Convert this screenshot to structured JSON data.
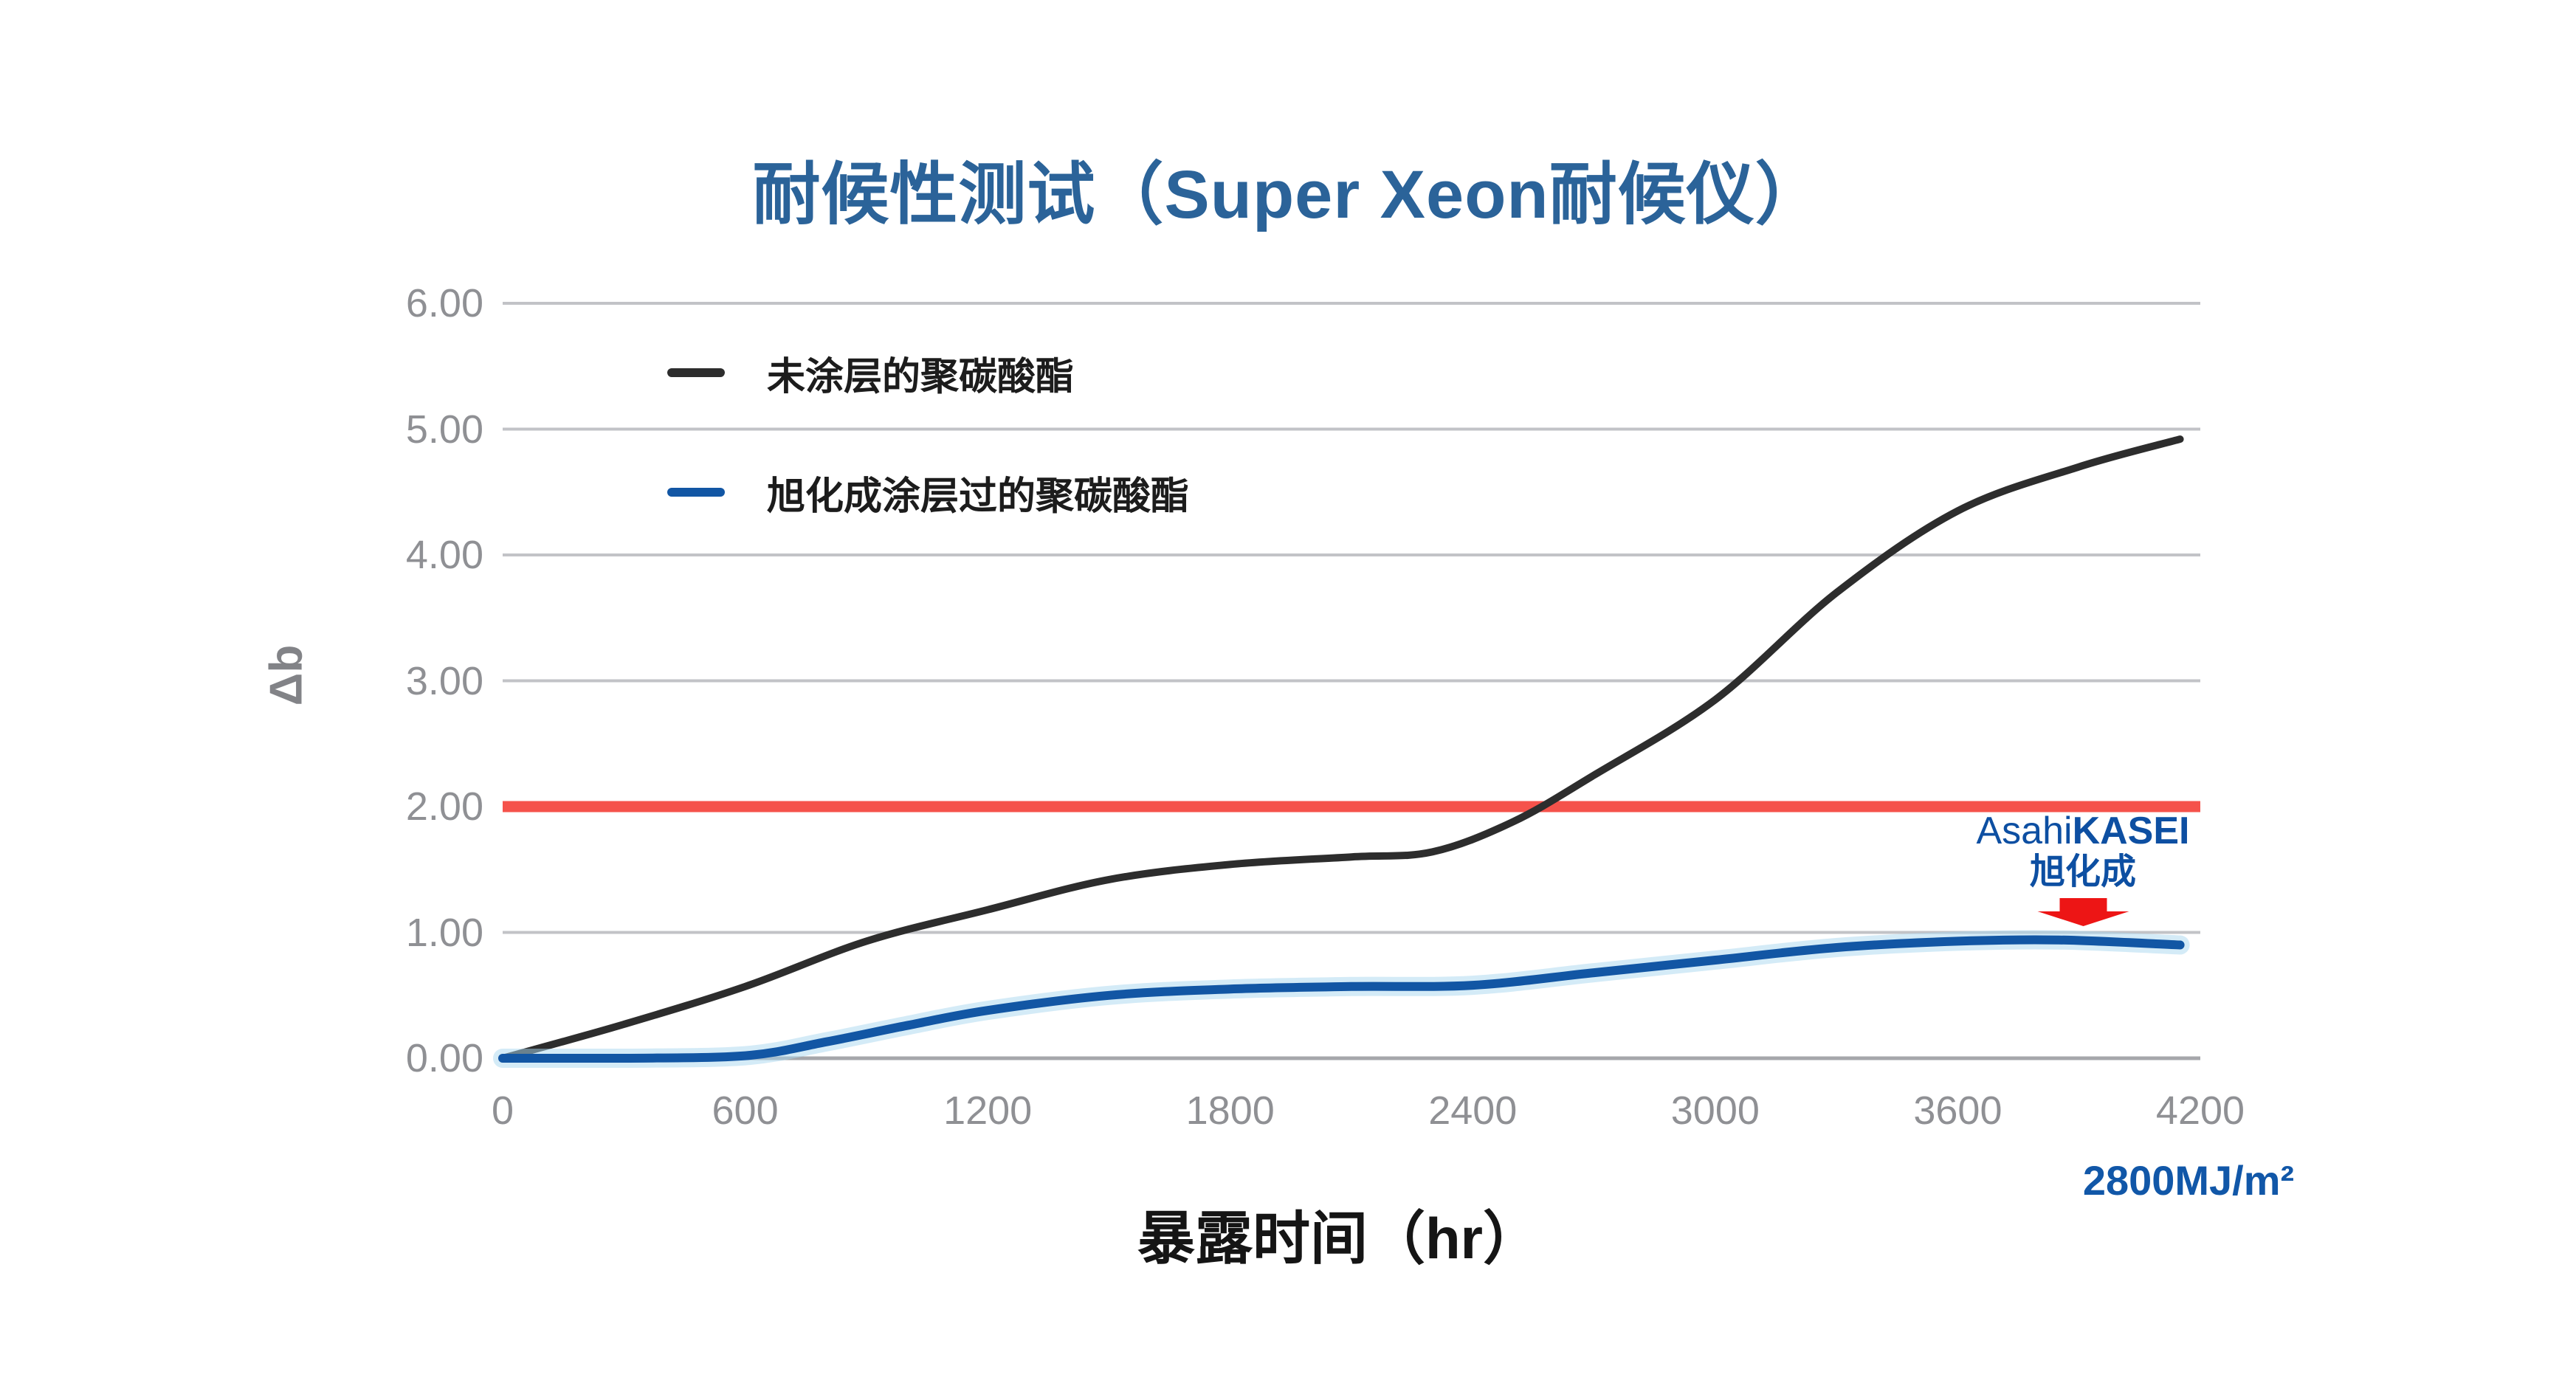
{
  "title": {
    "text": "耐候性测试（Super Xeon耐候仪）"
  },
  "colors": {
    "title_blue": "#2b6399",
    "grid": "#c2c3c7",
    "axis": "#a6a7ab",
    "tick_text": "#8f9094",
    "legend_text": "#1c1c1c",
    "threshold": "#f5524b",
    "series_black": "#2d2d2d",
    "series_blue": "#1256a4",
    "series_blue_halo": "#a9d7ef",
    "logo_blue": "#0d4fa2",
    "note_blue": "#1157a8",
    "arrow_red": "#ed1515",
    "xlabel_text": "#151515",
    "ylabel_text": "#828387"
  },
  "chart_data": {
    "type": "line",
    "title": "耐候性测试（Super Xeon耐候仪）",
    "xlabel": "暴露时间（hr）",
    "ylabel": "Δb",
    "xlim": [
      0,
      4200
    ],
    "ylim": [
      0,
      6
    ],
    "x_ticks": [
      0,
      600,
      1200,
      1800,
      2400,
      3000,
      3600,
      4200
    ],
    "y_ticks": [
      "0.00",
      "1.00",
      "2.00",
      "3.00",
      "4.00",
      "5.00",
      "6.00"
    ],
    "grid": "horizontal",
    "legend_position": "top-left-inside",
    "series": [
      {
        "name": "未涂层的聚碳酸酯",
        "color": "#2d2d2d",
        "x": [
          0,
          300,
          600,
          900,
          1200,
          1500,
          1800,
          2100,
          2300,
          2500,
          2700,
          3000,
          3300,
          3600,
          3900,
          4150
        ],
        "y": [
          0,
          0.27,
          0.57,
          0.93,
          1.18,
          1.42,
          1.54,
          1.6,
          1.64,
          1.88,
          2.25,
          2.85,
          3.7,
          4.35,
          4.7,
          4.92
        ]
      },
      {
        "name": "旭化成涂层过的聚碳酸酯",
        "color": "#1256a4",
        "halo": "#a9d7ef",
        "x": [
          0,
          300,
          600,
          800,
          1000,
          1200,
          1500,
          1800,
          2100,
          2400,
          2700,
          3000,
          3300,
          3600,
          3850,
          4150
        ],
        "y": [
          0,
          0.0,
          0.02,
          0.13,
          0.26,
          0.38,
          0.5,
          0.55,
          0.57,
          0.58,
          0.68,
          0.78,
          0.88,
          0.93,
          0.94,
          0.9
        ]
      }
    ],
    "threshold_line": {
      "y": 2,
      "color": "#f5524b"
    },
    "annotations": {
      "logo": {
        "line1_light": "Asahi",
        "line1_bold": "KASEI",
        "line2": "旭化成"
      },
      "arrow": {
        "shape": "down-block-arrow",
        "color": "#ed1515"
      },
      "exposure_note": {
        "text": "2800MJ/m²"
      }
    }
  }
}
